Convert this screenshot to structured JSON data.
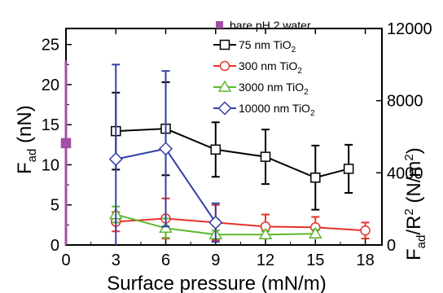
{
  "chart_data": {
    "type": "scatter",
    "x_axis": {
      "label_main": "Surface pressure (mN/m)",
      "range": [
        0,
        19
      ],
      "ticks": [
        "0",
        "3",
        "6",
        "9",
        "12",
        "15",
        "18"
      ],
      "tick_values": [
        0,
        3,
        6,
        9,
        12,
        15,
        18
      ]
    },
    "y_axis_left": {
      "label_main": "F",
      "label_sub": "ad",
      "label_unit": " (nN)",
      "range": [
        0,
        27
      ],
      "ticks": [
        "0",
        "5",
        "10",
        "15",
        "20",
        "25"
      ],
      "tick_values": [
        0,
        5,
        10,
        15,
        20,
        25
      ]
    },
    "y_axis_right": {
      "label_a": "F",
      "label_a_sub": "ad",
      "label_b": "/R",
      "label_b_sup": "2",
      "label_c": " (N/m",
      "label_c_sup": "2",
      "label_d": ")",
      "range": [
        0,
        12000
      ],
      "ticks": [
        "0",
        "4000",
        "8000",
        "12000"
      ],
      "tick_values": [
        0,
        4000,
        8000,
        12000
      ]
    },
    "bare_water": {
      "name": "bare pH 2 water",
      "color": "#a24fa6",
      "marker": "filled-square",
      "x": 0,
      "y": 12.7,
      "err_low": 0,
      "err_high": 23
    },
    "series": [
      {
        "name_main": "75 nm TiO",
        "name_sub": "2",
        "color": "#000000",
        "marker": "square",
        "x": [
          3,
          6,
          9,
          12,
          15,
          17
        ],
        "y": [
          14.2,
          14.5,
          11.9,
          11.0,
          8.4,
          9.5
        ],
        "err": [
          4.8,
          5.8,
          3.4,
          3.4,
          4.0,
          3.0
        ]
      },
      {
        "name_main": "300 nm TiO",
        "name_sub": "2",
        "color": "#e5332a",
        "marker": "circle",
        "x": [
          3,
          6,
          9,
          12,
          15,
          18
        ],
        "y": [
          2.9,
          3.3,
          2.8,
          2.3,
          2.2,
          1.8
        ],
        "err": [
          1.2,
          2.5,
          2.2,
          1.5,
          1.3,
          1.0
        ]
      },
      {
        "name_main": "3000 nm TiO",
        "name_sub": "2",
        "color": "#5cb82e",
        "marker": "triangle",
        "x": [
          3,
          6,
          9,
          12,
          15
        ],
        "y": [
          3.8,
          2.1,
          1.3,
          1.3,
          1.4
        ],
        "err": [
          1.0,
          1.2,
          0.5,
          0.4,
          0.5
        ]
      },
      {
        "name_main": "10000 nm TiO",
        "name_sub": "2",
        "color": "#3340a8",
        "marker": "diamond",
        "x": [
          3,
          6,
          9
        ],
        "y": [
          10.7,
          12.0,
          2.8
        ],
        "err": [
          11.8,
          9.7,
          2.4
        ]
      }
    ],
    "grid": false,
    "legend_position": "top-right"
  }
}
